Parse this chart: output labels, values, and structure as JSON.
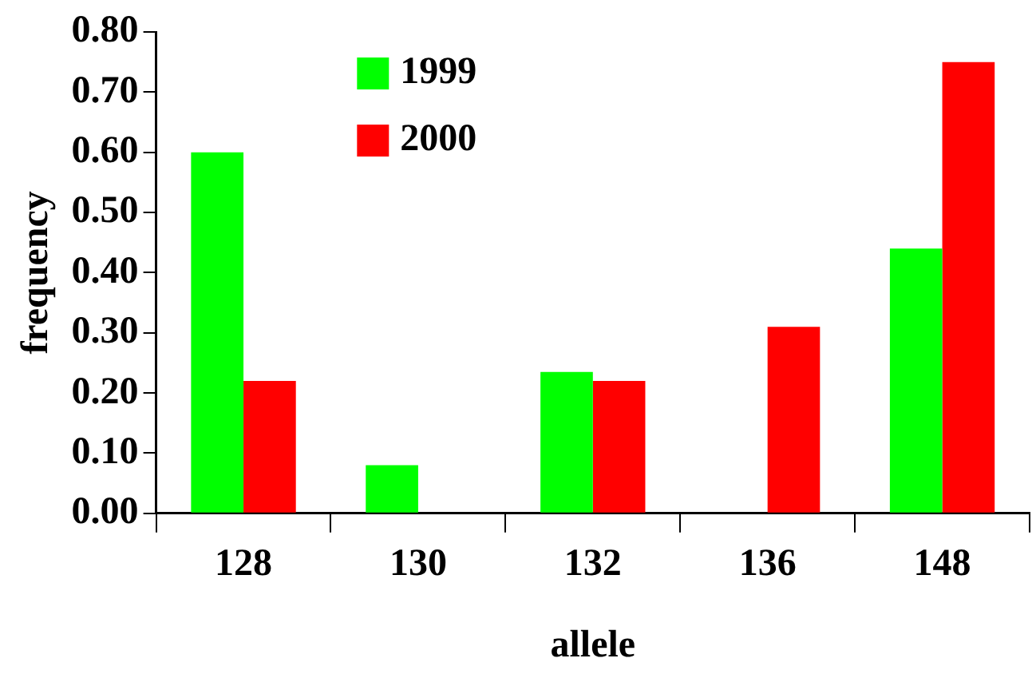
{
  "chart_data": {
    "type": "bar",
    "xlabel": "allele",
    "ylabel": "frequency",
    "categories": [
      "128",
      "130",
      "132",
      "136",
      "148"
    ],
    "series": [
      {
        "name": "1999",
        "color": "#00ff00",
        "values": [
          0.6,
          0.08,
          0.235,
          0,
          0.44
        ]
      },
      {
        "name": "2000",
        "color": "#ff0000",
        "values": [
          0.22,
          0,
          0.22,
          0.31,
          0.75
        ]
      }
    ],
    "ylim": [
      0,
      0.8
    ],
    "yticks": [
      {
        "value": 0,
        "label": "0.00"
      },
      {
        "value": 0.1,
        "label": "0.10"
      },
      {
        "value": 0.2,
        "label": "0.20"
      },
      {
        "value": 0.3,
        "label": "0.30"
      },
      {
        "value": 0.4,
        "label": "0.40"
      },
      {
        "value": 0.5,
        "label": "0.50"
      },
      {
        "value": 0.6,
        "label": "0.60"
      },
      {
        "value": 0.7,
        "label": "0.70"
      },
      {
        "value": 0.8,
        "label": "0.80"
      }
    ],
    "grid": false,
    "legend": "top"
  }
}
